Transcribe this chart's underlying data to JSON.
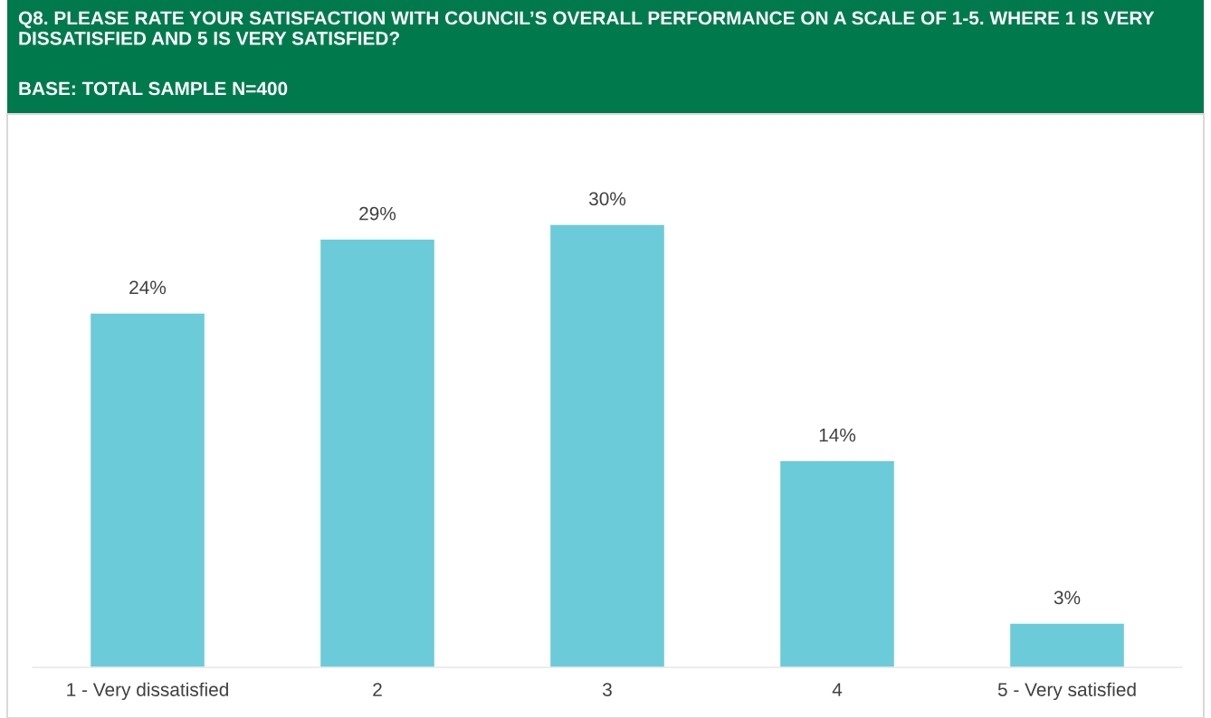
{
  "chart_data": {
    "type": "bar",
    "title": "Q8. PLEASE RATE YOUR SATISFACTION WITH COUNCIL’S OVERALL PERFORMANCE ON A SCALE OF 1-5. WHERE 1 IS VERY DISSATISFIED AND 5 IS VERY SATISFIED?",
    "subtitle": "BASE: TOTAL SAMPLE N=400",
    "categories": [
      "1 - Very dissatisfied",
      "2",
      "3",
      "4",
      "5 - Very satisfied"
    ],
    "values": [
      24,
      29,
      30,
      14,
      3
    ],
    "value_labels": [
      "24%",
      "29%",
      "30%",
      "14%",
      "3%"
    ],
    "color": "#6ccbd8",
    "grid": false,
    "legend": false
  }
}
